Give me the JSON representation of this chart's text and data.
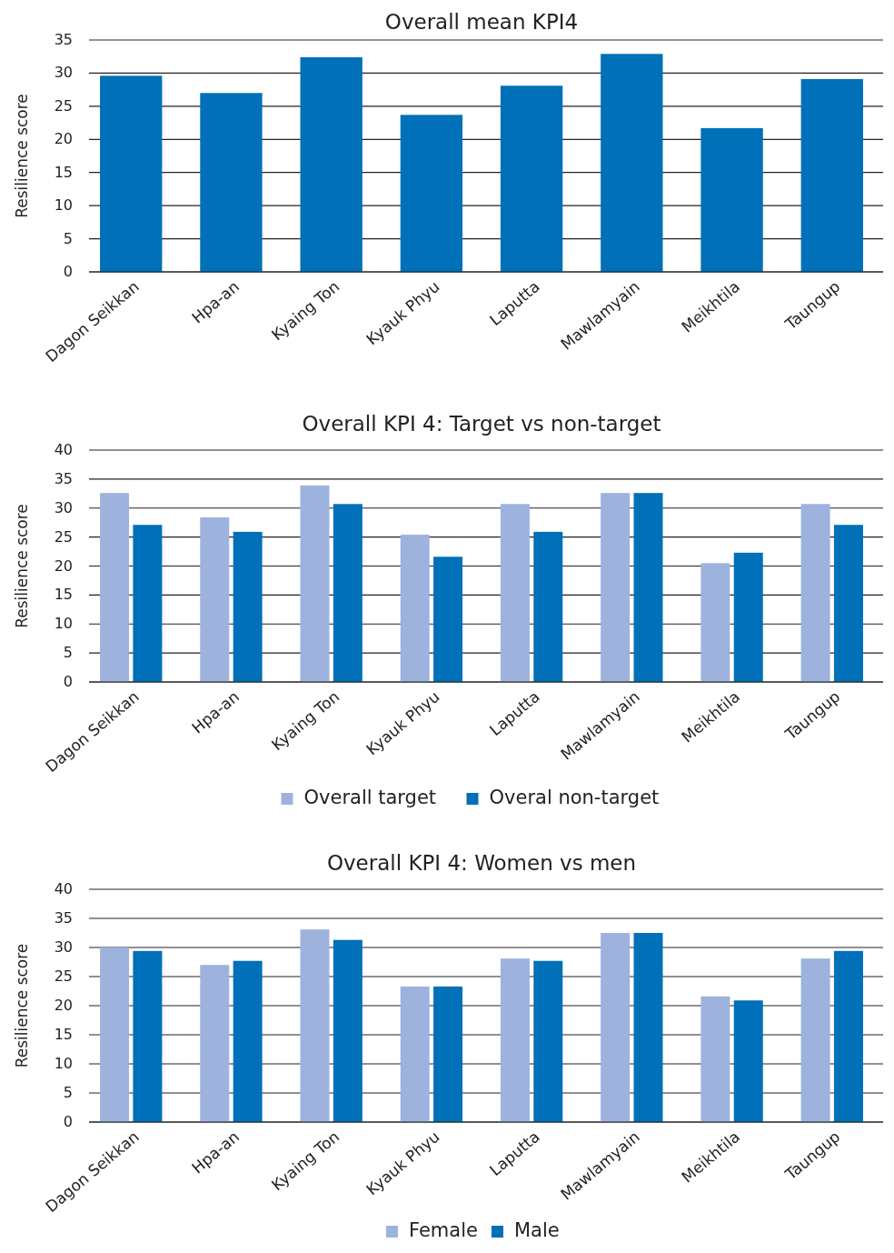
{
  "chart_data": [
    {
      "type": "bar",
      "title": "Overall mean KPI4",
      "ylabel": "Resilience score",
      "categories": [
        "Dagon Seikkan",
        "Hpa-an",
        "Kyaing Ton",
        "Kyauk Phyu",
        "Laputta",
        "Mawlamyain",
        "Meikhtila",
        "Taungup"
      ],
      "values": [
        29.6,
        27.0,
        32.4,
        23.7,
        28.1,
        32.9,
        21.7,
        29.1
      ],
      "color": "#0070b8",
      "ylim": [
        0,
        35
      ],
      "yticks": [
        0,
        5,
        10,
        15,
        20,
        25,
        30,
        35
      ],
      "grid": "y"
    },
    {
      "type": "bar",
      "title": "Overall KPI 4: Target vs non-target",
      "ylabel": "Resilience score",
      "categories": [
        "Dagon Seikkan",
        "Hpa-an",
        "Kyaing Ton",
        "Kyauk Phyu",
        "Laputta",
        "Mawlamyain",
        "Meikhtila",
        "Taungup"
      ],
      "series": [
        {
          "name": "Overall target",
          "color": "#9db3de",
          "values": [
            32.6,
            28.4,
            33.9,
            25.4,
            30.7,
            32.6,
            20.5,
            30.7
          ]
        },
        {
          "name": "Overal non-target",
          "color": "#0070b8",
          "values": [
            27.1,
            25.9,
            30.7,
            21.6,
            25.9,
            32.6,
            22.3,
            27.1
          ]
        }
      ],
      "ylim": [
        0,
        40
      ],
      "yticks": [
        0,
        5,
        10,
        15,
        20,
        25,
        30,
        35,
        40
      ],
      "grid": "y",
      "legend": "bottom"
    },
    {
      "type": "bar",
      "title": "Overall KPI 4: Women vs men",
      "ylabel": "Resilience score",
      "categories": [
        "Dagon Seikkan",
        "Hpa-an",
        "Kyaing Ton",
        "Kyauk Phyu",
        "Laputta",
        "Mawlamyain",
        "Meikhtila",
        "Taungup"
      ],
      "series": [
        {
          "name": "Female",
          "color": "#9db3de",
          "values": [
            30.0,
            27.0,
            33.1,
            23.3,
            28.1,
            32.5,
            21.6,
            28.1
          ]
        },
        {
          "name": "Male",
          "color": "#0070b8",
          "values": [
            29.4,
            27.7,
            31.3,
            23.3,
            27.7,
            32.5,
            20.9,
            29.4
          ]
        }
      ],
      "ylim": [
        0,
        40
      ],
      "yticks": [
        0,
        5,
        10,
        15,
        20,
        25,
        30,
        35,
        40
      ],
      "grid": "y",
      "legend": "bottom"
    }
  ]
}
